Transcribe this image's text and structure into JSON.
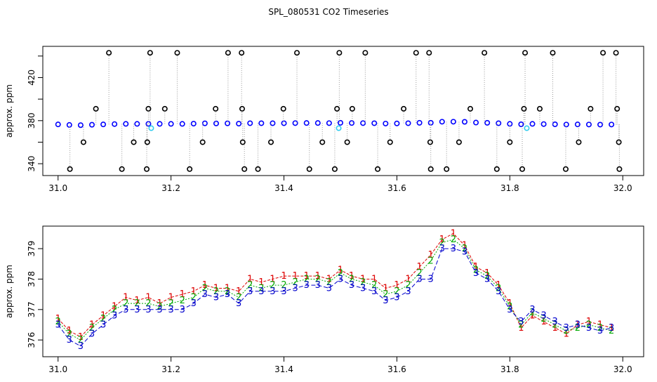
{
  "title": "SPL_080531  CO2 Timeseries",
  "chart_data": [
    {
      "type": "scatter",
      "ylabel": "approx. ppm",
      "xlim": [
        30.973,
        32.037
      ],
      "ylim": [
        329,
        449
      ],
      "xticks": [
        {
          "value": 31,
          "label": "31.0"
        },
        31.2,
        31.4,
        31.6,
        31.8,
        {
          "value": 32,
          "label": "32.0"
        }
      ],
      "yticks": [
        340,
        380,
        420
      ],
      "yminorticks": [
        360,
        400,
        440
      ],
      "series": [
        {
          "color": "#0000ff",
          "style": "points",
          "x": [
            31.0,
            31.02,
            31.04,
            31.06,
            31.08,
            31.1,
            31.12,
            31.14,
            31.16,
            31.18,
            31.2,
            31.22,
            31.24,
            31.26,
            31.28,
            31.3,
            31.32,
            31.34,
            31.36,
            31.38,
            31.4,
            31.42,
            31.44,
            31.46,
            31.48,
            31.5,
            31.52,
            31.54,
            31.56,
            31.58,
            31.6,
            31.62,
            31.64,
            31.66,
            31.68,
            31.7,
            31.72,
            31.74,
            31.76,
            31.78,
            31.8,
            31.82,
            31.84,
            31.86,
            31.88,
            31.9,
            31.92,
            31.94,
            31.96,
            31.98
          ],
          "values": [
            376.5,
            376.0,
            375.8,
            376.2,
            376.5,
            376.8,
            377.0,
            377.0,
            377.0,
            377.0,
            377.0,
            377.0,
            377.2,
            377.5,
            377.4,
            377.5,
            377.2,
            377.6,
            377.6,
            377.6,
            377.6,
            377.7,
            377.8,
            377.8,
            377.7,
            378.0,
            377.8,
            377.7,
            377.6,
            377.3,
            377.4,
            377.6,
            378.0,
            378.0,
            379.0,
            379.0,
            378.9,
            378.2,
            378.0,
            377.6,
            377.0,
            376.6,
            377.0,
            376.8,
            376.6,
            376.4,
            376.5,
            376.4,
            376.3,
            376.4
          ]
        },
        {
          "color": "#33ccee",
          "style": "points",
          "x": [
            31.165,
            31.497,
            31.83
          ],
          "values": [
            373,
            373,
            373
          ]
        },
        {
          "color": "#000000",
          "style": "spikes",
          "x": [
            31.09,
            31.163,
            31.211,
            31.301,
            31.325,
            31.423,
            31.498,
            31.544,
            31.634,
            31.657,
            31.755,
            31.827,
            31.876,
            31.965,
            31.988,
            31.021,
            31.113,
            31.157,
            31.233,
            31.33,
            31.354,
            31.445,
            31.49,
            31.566,
            31.66,
            31.688,
            31.777,
            31.822,
            31.899,
            31.994,
            31.067,
            31.16,
            31.189,
            31.279,
            31.326,
            31.399,
            31.494,
            31.521,
            31.612,
            31.73,
            31.825,
            31.853,
            31.943,
            31.99,
            31.045,
            31.134,
            31.158,
            31.256,
            31.327,
            31.377,
            31.468,
            31.512,
            31.588,
            31.659,
            31.71,
            31.8,
            31.922,
            31.993
          ],
          "values": [
            443,
            443,
            443,
            443,
            443,
            443,
            443,
            443,
            443,
            443,
            443,
            443,
            443,
            443,
            443,
            335,
            335,
            335,
            335,
            335,
            335,
            335,
            335,
            335,
            335,
            335,
            335,
            335,
            335,
            335,
            391,
            391,
            391,
            391,
            391,
            391,
            391,
            391,
            391,
            391,
            391,
            391,
            391,
            391,
            360,
            360,
            360,
            360,
            360,
            360,
            360,
            360,
            360,
            360,
            360,
            360,
            360,
            360
          ]
        }
      ]
    },
    {
      "type": "line",
      "ylabel": "approx. ppm",
      "xlim": [
        30.973,
        32.037
      ],
      "ylim": [
        375.45,
        379.74
      ],
      "xticks": [
        {
          "value": 31,
          "label": "31.0"
        },
        31.2,
        31.4,
        31.6,
        31.8,
        {
          "value": 32,
          "label": "32.0"
        }
      ],
      "yticks": [
        376,
        377,
        378,
        379
      ],
      "x": [
        31.0,
        31.02,
        31.04,
        31.06,
        31.08,
        31.1,
        31.12,
        31.14,
        31.16,
        31.18,
        31.2,
        31.22,
        31.24,
        31.26,
        31.28,
        31.3,
        31.32,
        31.34,
        31.36,
        31.38,
        31.4,
        31.42,
        31.44,
        31.46,
        31.48,
        31.5,
        31.52,
        31.54,
        31.56,
        31.58,
        31.6,
        31.62,
        31.64,
        31.66,
        31.68,
        31.7,
        31.72,
        31.74,
        31.76,
        31.78,
        31.8,
        31.82,
        31.84,
        31.86,
        31.88,
        31.9,
        31.92,
        31.94,
        31.96,
        31.98
      ],
      "series": [
        {
          "name": "1",
          "color": "#dd0000",
          "values": [
            376.7,
            376.3,
            376.1,
            376.5,
            376.8,
            377.1,
            377.4,
            377.3,
            377.4,
            377.2,
            377.4,
            377.5,
            377.6,
            377.8,
            377.7,
            377.7,
            377.6,
            378.0,
            377.9,
            378.0,
            378.1,
            378.1,
            378.1,
            378.1,
            378.0,
            378.3,
            378.1,
            378.0,
            378.0,
            377.7,
            377.8,
            378.0,
            378.4,
            378.8,
            379.3,
            379.5,
            379.1,
            378.4,
            378.2,
            377.8,
            377.2,
            376.4,
            376.8,
            376.6,
            376.4,
            376.2,
            376.5,
            376.6,
            376.5,
            376.4
          ]
        },
        {
          "name": "2",
          "color": "#00aa00",
          "values": [
            376.6,
            376.2,
            376.0,
            376.4,
            376.7,
            377.0,
            377.2,
            377.2,
            377.2,
            377.1,
            377.2,
            377.3,
            377.4,
            377.7,
            377.6,
            377.6,
            377.4,
            377.8,
            377.7,
            377.8,
            377.8,
            377.9,
            378.0,
            378.0,
            377.9,
            378.2,
            378.0,
            377.9,
            377.8,
            377.5,
            377.6,
            377.8,
            378.2,
            378.6,
            379.2,
            379.3,
            379.0,
            378.3,
            378.1,
            377.7,
            377.1,
            376.5,
            376.9,
            376.7,
            376.5,
            376.3,
            376.4,
            376.5,
            376.4,
            376.3
          ]
        },
        {
          "name": "3",
          "color": "#0000cc",
          "values": [
            376.5,
            376.0,
            375.8,
            376.2,
            376.5,
            376.8,
            377.0,
            377.0,
            377.0,
            377.0,
            377.0,
            377.0,
            377.2,
            377.5,
            377.4,
            377.5,
            377.2,
            377.6,
            377.6,
            377.6,
            377.6,
            377.7,
            377.8,
            377.8,
            377.7,
            378.0,
            377.8,
            377.7,
            377.6,
            377.3,
            377.4,
            377.6,
            378.0,
            378.0,
            379.0,
            379.0,
            378.9,
            378.2,
            378.0,
            377.6,
            377.0,
            376.6,
            377.0,
            376.8,
            376.6,
            376.4,
            376.5,
            376.4,
            376.3,
            376.4
          ]
        }
      ]
    }
  ]
}
